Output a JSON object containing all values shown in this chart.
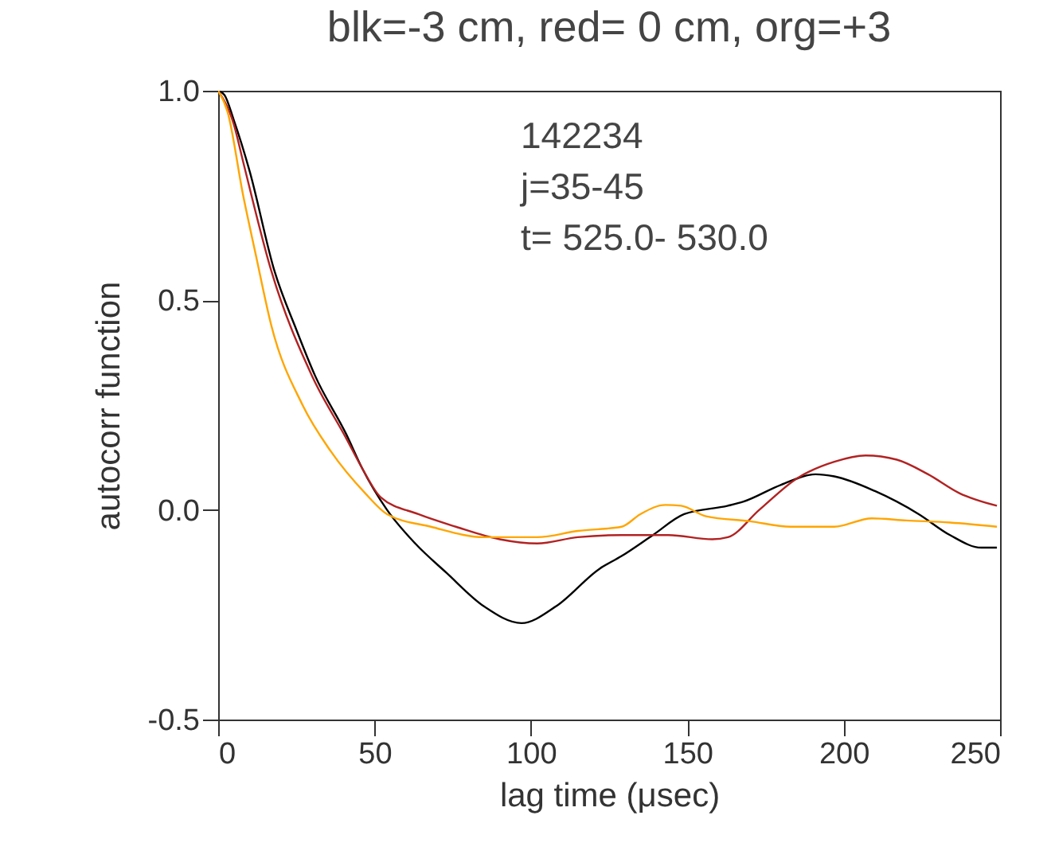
{
  "chart_data": {
    "type": "line",
    "title": "blk=-3 cm, red= 0 cm, org=+3",
    "xlabel": "lag time (μsec)",
    "ylabel": "autocorr function",
    "annotations": [
      "142234",
      "j=35-45",
      "t= 525.0- 530.0"
    ],
    "xlim": [
      0,
      250
    ],
    "xticks": [
      0,
      50,
      100,
      150,
      200,
      250
    ],
    "ylim": [
      -0.5,
      1.0
    ],
    "yticks": [
      {
        "value": -0.5,
        "label": "-0.5"
      },
      {
        "value": 0,
        "label": "0.0"
      },
      {
        "value": 0.5,
        "label": "0.5"
      },
      {
        "value": 1,
        "label": "1.0"
      }
    ],
    "grid": false,
    "series": [
      {
        "color": "#000000",
        "x": [
          0,
          2,
          5,
          10,
          18,
          25,
          31,
          41,
          46,
          54,
          63,
          73,
          85,
          97,
          108,
          122,
          129,
          139,
          149,
          163,
          168,
          180,
          191,
          197,
          210,
          224,
          234,
          244,
          249
        ],
        "values": [
          1.0,
          0.99,
          0.93,
          0.81,
          0.57,
          0.43,
          0.32,
          0.18,
          0.1,
          0.0,
          -0.08,
          -0.15,
          -0.23,
          -0.27,
          -0.23,
          -0.14,
          -0.11,
          -0.06,
          -0.01,
          0.01,
          0.02,
          0.06,
          0.085,
          0.08,
          0.045,
          -0.01,
          -0.06,
          -0.09,
          -0.09
        ]
      },
      {
        "color": "#b22222",
        "x": [
          0,
          5,
          8,
          17,
          30,
          41,
          46,
          52,
          64,
          76,
          90,
          102,
          115,
          129,
          144,
          158,
          163,
          173,
          185,
          197,
          207,
          217,
          227,
          237,
          249
        ],
        "values": [
          1.0,
          0.92,
          0.83,
          0.57,
          0.32,
          0.17,
          0.1,
          0.03,
          -0.01,
          -0.04,
          -0.07,
          -0.08,
          -0.065,
          -0.06,
          -0.06,
          -0.07,
          -0.065,
          0.0,
          0.075,
          0.115,
          0.13,
          0.12,
          0.085,
          0.04,
          0.01
        ]
      },
      {
        "color": "#ffa500",
        "x": [
          0,
          3,
          8,
          12,
          17,
          27,
          36,
          47,
          54,
          68,
          85,
          102,
          115,
          129,
          135,
          143,
          148,
          156,
          170,
          183,
          197,
          209,
          220,
          234,
          249
        ],
        "values": [
          1.0,
          0.95,
          0.75,
          0.61,
          0.44,
          0.25,
          0.14,
          0.04,
          -0.01,
          -0.04,
          -0.065,
          -0.065,
          -0.05,
          -0.04,
          -0.01,
          0.012,
          0.01,
          -0.015,
          -0.027,
          -0.04,
          -0.04,
          -0.02,
          -0.025,
          -0.03,
          -0.04
        ]
      }
    ]
  }
}
